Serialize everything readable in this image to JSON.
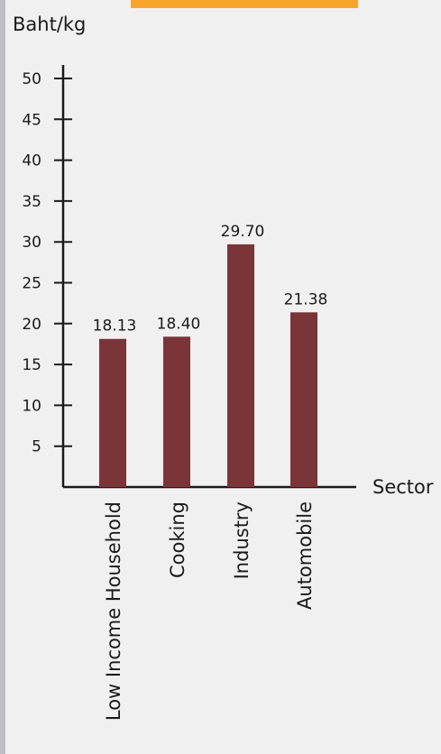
{
  "chart_data": {
    "type": "bar",
    "ylabel": "Baht/kg",
    "xlabel": "Sector",
    "categories": [
      "Low Income Household",
      "Cooking",
      "Industry",
      "Automobile"
    ],
    "values": [
      18.13,
      18.4,
      29.7,
      21.38
    ],
    "value_labels": [
      "18.13",
      "18.40",
      "29.70",
      "21.38"
    ],
    "yticks": [
      5,
      10,
      15,
      20,
      25,
      30,
      35,
      40,
      45,
      50
    ],
    "ylim": [
      0,
      50
    ],
    "grid": false,
    "legend": "none",
    "bar_color": "#7a3538"
  },
  "colors": {
    "background": "#f0f0f0",
    "banner": "#f7a52a",
    "stripe": "#bdbdc2"
  }
}
